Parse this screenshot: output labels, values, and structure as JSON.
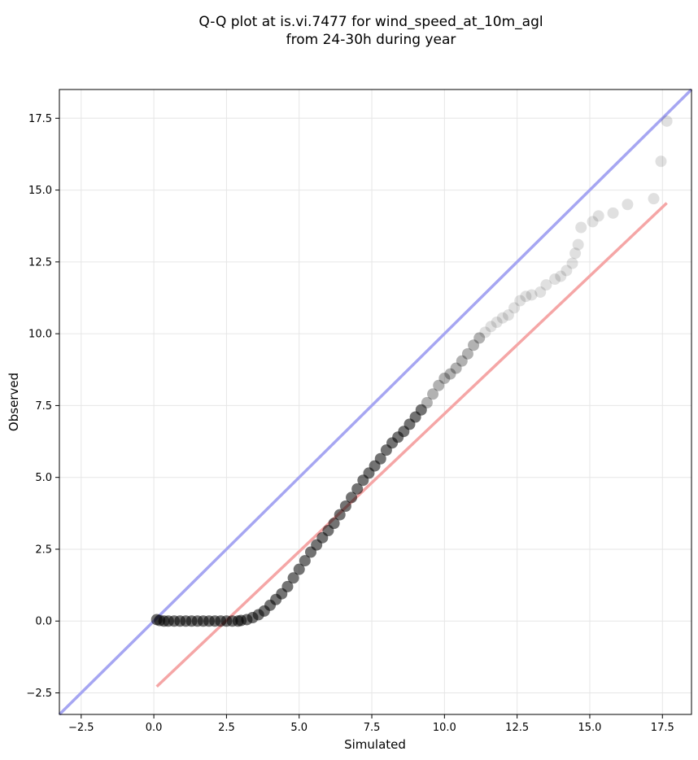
{
  "chart_data": {
    "type": "scatter",
    "title": "Q-Q plot at is.vi.7477 for wind_speed_at_10m_agl",
    "subtitle": "from 24-30h during year",
    "xlabel": "Simulated",
    "ylabel": "Observed",
    "xlim": [
      -3.25,
      18.5
    ],
    "ylim": [
      -3.25,
      18.5
    ],
    "xticks": [
      "−2.5",
      "0.0",
      "2.5",
      "5.0",
      "7.5",
      "10.0",
      "12.5",
      "15.0",
      "17.5"
    ],
    "yticks": [
      "−2.5",
      "0.0",
      "2.5",
      "5.0",
      "7.5",
      "10.0",
      "12.5",
      "15.0",
      "17.5"
    ],
    "grid": true,
    "series": [
      {
        "role": "quantiles",
        "color": "#000000",
        "x": [
          0.1,
          0.2,
          0.35,
          0.5,
          0.7,
          0.9,
          1.1,
          1.3,
          1.5,
          1.7,
          1.9,
          2.1,
          2.3,
          2.5,
          2.7,
          2.9,
          3.0,
          3.2,
          3.4,
          3.6,
          3.8,
          4.0,
          4.2,
          4.4,
          4.6,
          4.8,
          5.0,
          5.2,
          5.4,
          5.6,
          5.8,
          6.0,
          6.2,
          6.4,
          6.6,
          6.8,
          7.0,
          7.2,
          7.4,
          7.6,
          7.8,
          8.0,
          8.2,
          8.4,
          8.6,
          8.8,
          9.0,
          9.2,
          9.4,
          9.6,
          9.8,
          10.0,
          10.2,
          10.4,
          10.6,
          10.8,
          11.0,
          11.2,
          11.4,
          11.6,
          11.8,
          12.0,
          12.2,
          12.4,
          12.6,
          12.8,
          13.0,
          13.3,
          13.5,
          13.8,
          14.0,
          14.2,
          14.4,
          14.5,
          14.6,
          14.7,
          15.1,
          15.3,
          15.8,
          16.3,
          17.2,
          17.45,
          17.65
        ],
        "y": [
          0.05,
          0.02,
          0.0,
          0.0,
          0.0,
          0.0,
          0.0,
          0.0,
          0.0,
          0.0,
          0.0,
          0.0,
          0.0,
          0.0,
          0.0,
          0.0,
          0.02,
          0.05,
          0.12,
          0.22,
          0.35,
          0.55,
          0.75,
          0.95,
          1.2,
          1.5,
          1.8,
          2.1,
          2.4,
          2.65,
          2.9,
          3.15,
          3.4,
          3.7,
          4.0,
          4.3,
          4.6,
          4.9,
          5.15,
          5.4,
          5.65,
          5.95,
          6.2,
          6.4,
          6.6,
          6.85,
          7.1,
          7.35,
          7.6,
          7.9,
          8.2,
          8.45,
          8.6,
          8.8,
          9.05,
          9.3,
          9.6,
          9.85,
          10.05,
          10.25,
          10.4,
          10.55,
          10.65,
          10.9,
          11.15,
          11.3,
          11.35,
          11.45,
          11.7,
          11.9,
          12.0,
          12.2,
          12.45,
          12.8,
          13.1,
          13.7,
          13.9,
          14.1,
          14.2,
          14.5,
          14.7,
          16.0,
          17.4
        ]
      },
      {
        "role": "identity-line",
        "color": "#a6a6f2",
        "x": [
          -3.25,
          18.5
        ],
        "y": [
          -3.25,
          18.5
        ]
      },
      {
        "role": "fit-line",
        "color": "#f5a6a6",
        "x": [
          0.1,
          17.65
        ],
        "y": [
          -2.28,
          14.55
        ]
      }
    ]
  }
}
